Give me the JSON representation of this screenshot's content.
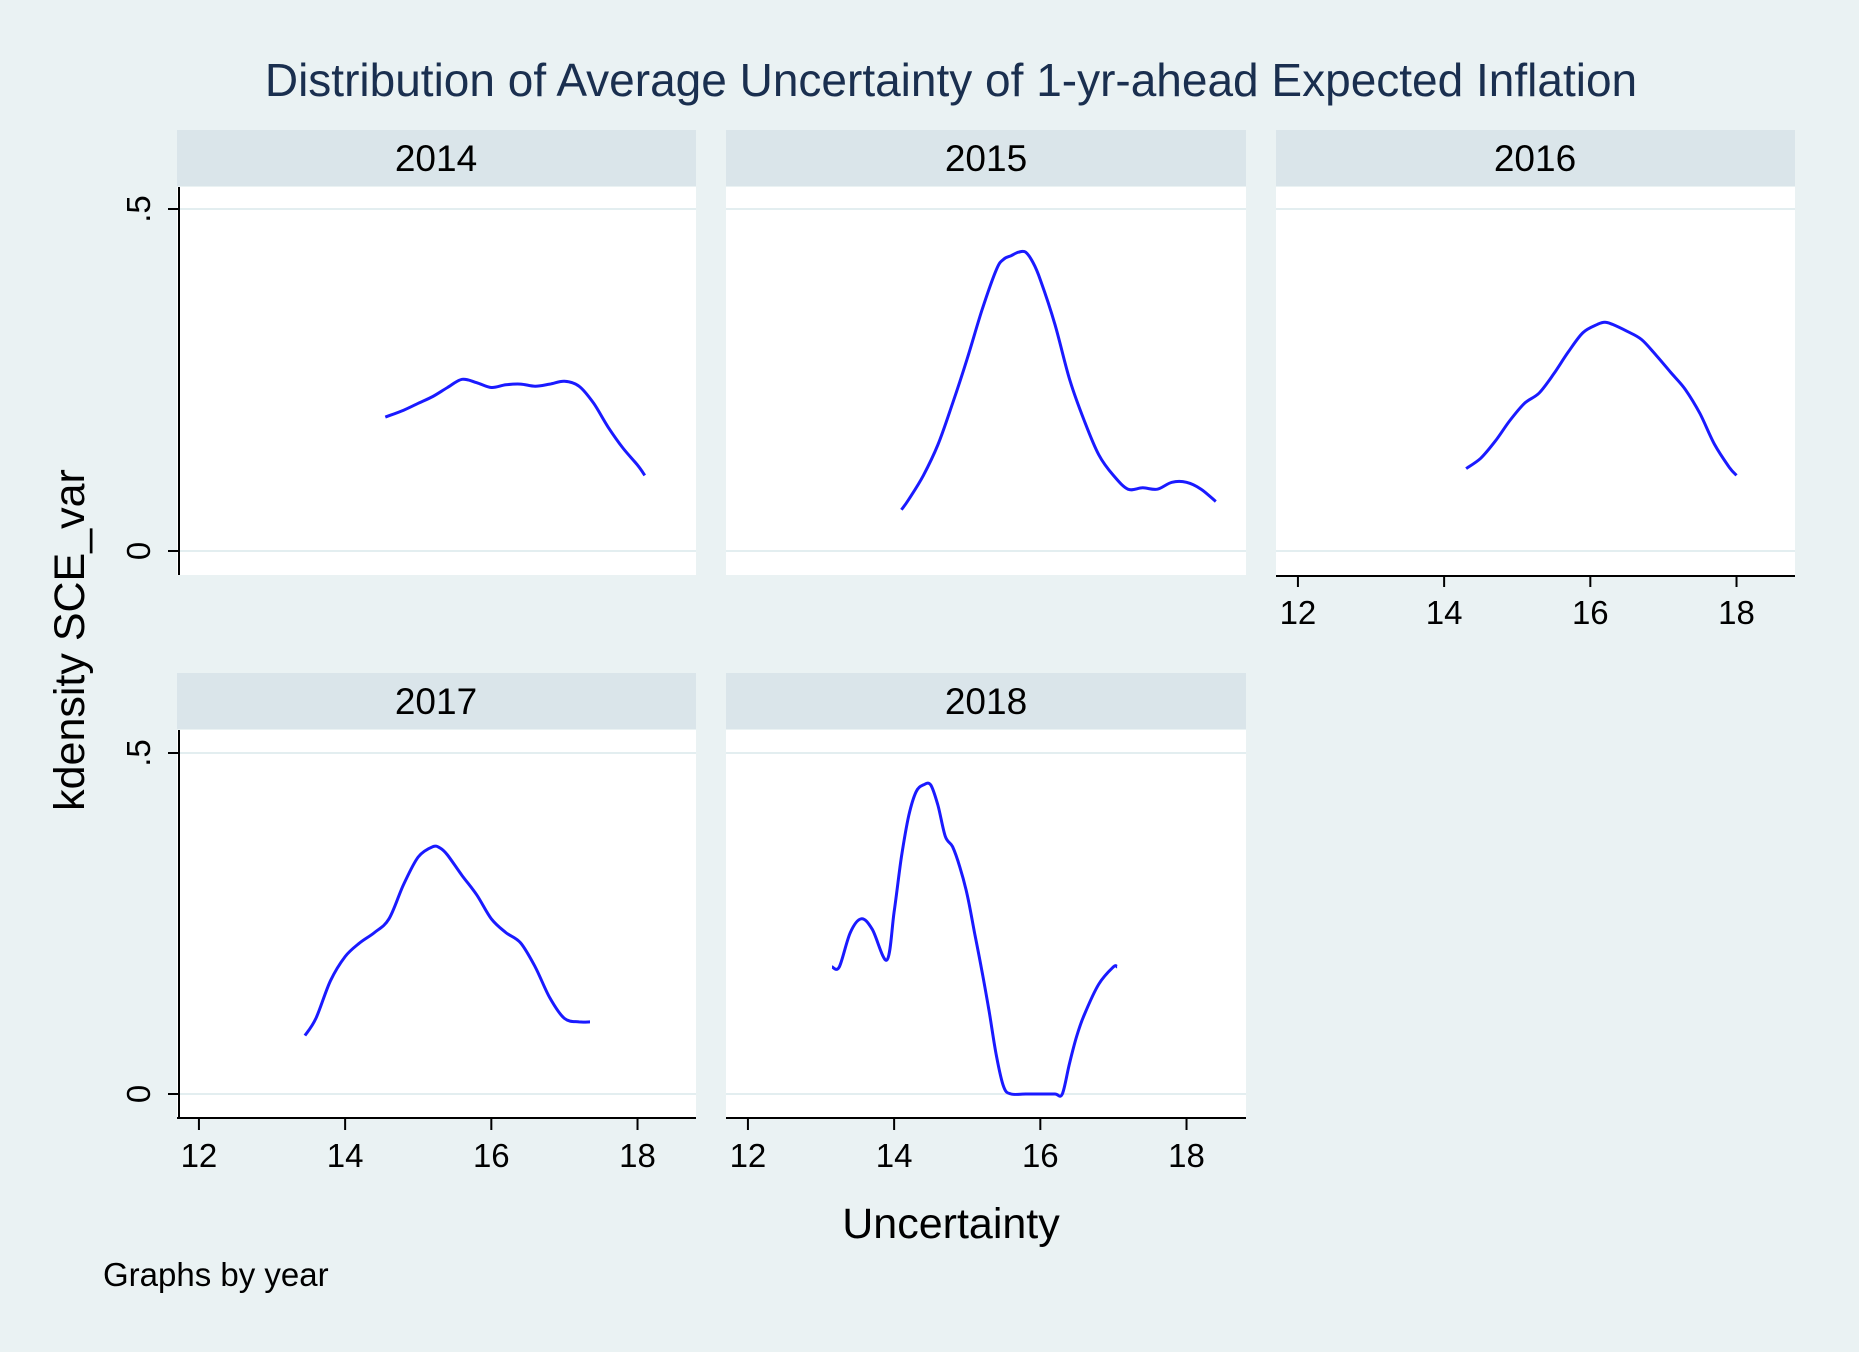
{
  "chart_data": {
    "type": "line",
    "title": "Distribution of Average Uncertainty of 1-yr-ahead Expected Inflation",
    "xlabel": "Uncertainty",
    "ylabel": "kdensity SCE_var",
    "note": "Graphs by year",
    "xlim": [
      11.7,
      18.8
    ],
    "ylim": [
      -0.035,
      0.53
    ],
    "xticks": [
      12,
      14,
      16,
      18
    ],
    "xtick_labels": [
      "12",
      "14",
      "16",
      "18"
    ],
    "yticks": [
      0,
      0.5
    ],
    "ytick_labels": [
      "0",
      ".5"
    ],
    "grid": true,
    "colors": {
      "line": "#1a1aff",
      "strip": "#dae5ea",
      "background": "#eaf2f3",
      "plot": "#ffffff",
      "grid": "#e3eef0",
      "title": "#1a2f4f"
    },
    "panels": [
      {
        "label": "2014",
        "x": [
          14.55,
          14.8,
          15.0,
          15.2,
          15.4,
          15.6,
          15.8,
          16.0,
          16.2,
          16.4,
          16.6,
          16.8,
          17.0,
          17.2,
          17.4,
          17.6,
          17.8,
          18.0,
          18.1
        ],
        "y": [
          0.195,
          0.205,
          0.215,
          0.225,
          0.238,
          0.25,
          0.245,
          0.238,
          0.242,
          0.243,
          0.24,
          0.243,
          0.247,
          0.24,
          0.215,
          0.18,
          0.15,
          0.125,
          0.11
        ]
      },
      {
        "label": "2015",
        "x": [
          14.1,
          14.2,
          14.4,
          14.6,
          14.8,
          15.0,
          15.2,
          15.4,
          15.5,
          15.6,
          15.7,
          15.8,
          15.9,
          16.0,
          16.2,
          16.4,
          16.6,
          16.8,
          17.0,
          17.2,
          17.4,
          17.6,
          17.8,
          18.0,
          18.2,
          18.4
        ],
        "y": [
          0.06,
          0.075,
          0.11,
          0.155,
          0.215,
          0.28,
          0.35,
          0.41,
          0.425,
          0.43,
          0.435,
          0.435,
          0.42,
          0.395,
          0.33,
          0.25,
          0.19,
          0.14,
          0.11,
          0.09,
          0.092,
          0.09,
          0.1,
          0.1,
          0.09,
          0.072
        ]
      },
      {
        "label": "2016",
        "x": [
          14.3,
          14.5,
          14.7,
          14.9,
          15.1,
          15.3,
          15.5,
          15.7,
          15.9,
          16.1,
          16.2,
          16.3,
          16.5,
          16.7,
          16.9,
          17.1,
          17.3,
          17.5,
          17.7,
          17.9,
          18.0
        ],
        "y": [
          0.12,
          0.135,
          0.16,
          0.19,
          0.215,
          0.23,
          0.258,
          0.29,
          0.318,
          0.33,
          0.333,
          0.33,
          0.32,
          0.308,
          0.285,
          0.26,
          0.235,
          0.2,
          0.155,
          0.122,
          0.11
        ]
      },
      {
        "label": "2017",
        "x": [
          13.45,
          13.6,
          13.8,
          14.0,
          14.2,
          14.4,
          14.6,
          14.8,
          15.0,
          15.2,
          15.3,
          15.4,
          15.6,
          15.8,
          16.0,
          16.2,
          16.4,
          16.6,
          16.8,
          17.0,
          17.2,
          17.35
        ],
        "y": [
          0.085,
          0.11,
          0.165,
          0.2,
          0.22,
          0.235,
          0.255,
          0.305,
          0.345,
          0.36,
          0.358,
          0.348,
          0.318,
          0.29,
          0.255,
          0.235,
          0.22,
          0.185,
          0.14,
          0.11,
          0.105,
          0.105
        ]
      },
      {
        "label": "2018",
        "x": [
          13.15,
          13.25,
          13.4,
          13.55,
          13.7,
          13.9,
          14.0,
          14.1,
          14.2,
          14.3,
          14.4,
          14.5,
          14.6,
          14.7,
          14.8,
          14.9,
          15.0,
          15.1,
          15.2,
          15.3,
          15.4,
          15.5,
          15.6,
          15.8,
          16.0,
          16.2,
          16.3,
          16.4,
          16.5,
          16.6,
          16.8,
          17.0,
          17.05
        ],
        "y": [
          0.185,
          0.185,
          0.235,
          0.255,
          0.24,
          0.195,
          0.265,
          0.345,
          0.405,
          0.44,
          0.45,
          0.45,
          0.42,
          0.375,
          0.36,
          0.33,
          0.29,
          0.235,
          0.18,
          0.12,
          0.055,
          0.01,
          0.0,
          0.0,
          0.0,
          0.0,
          0.0,
          0.045,
          0.085,
          0.115,
          0.16,
          0.185,
          0.185
        ]
      }
    ]
  }
}
